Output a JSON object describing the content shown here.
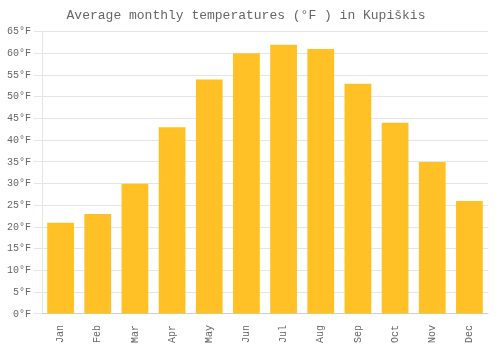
{
  "chart_data": {
    "type": "bar",
    "title": "Average monthly temperatures (°F ) in Kupiškis",
    "categories": [
      "Jan",
      "Feb",
      "Mar",
      "Apr",
      "May",
      "Jun",
      "Jul",
      "Aug",
      "Sep",
      "Oct",
      "Nov",
      "Dec"
    ],
    "values": [
      21,
      23,
      30,
      43,
      54,
      60,
      62,
      61,
      53,
      44,
      35,
      26
    ],
    "color": "#FFC125",
    "ylim": [
      0,
      65
    ],
    "yticks": [
      {
        "value": 0,
        "label": "0°F"
      },
      {
        "value": 5,
        "label": "5°F"
      },
      {
        "value": 10,
        "label": "10°F"
      },
      {
        "value": 15,
        "label": "15°F"
      },
      {
        "value": 20,
        "label": "20°F"
      },
      {
        "value": 25,
        "label": "25°F"
      },
      {
        "value": 30,
        "label": "30°F"
      },
      {
        "value": 35,
        "label": "35°F"
      },
      {
        "value": 40,
        "label": "40°F"
      },
      {
        "value": 45,
        "label": "45°F"
      },
      {
        "value": 50,
        "label": "50°F"
      },
      {
        "value": 55,
        "label": "55°F"
      },
      {
        "value": 60,
        "label": "60°F"
      },
      {
        "value": 65,
        "label": "65°F"
      }
    ],
    "grid": true
  }
}
